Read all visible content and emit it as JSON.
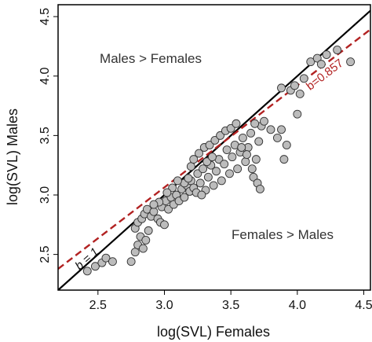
{
  "chart_data": {
    "type": "scatter",
    "xlabel": "log(SVL) Females",
    "ylabel": "log(SVL) Males",
    "xlim": [
      2.2,
      4.55
    ],
    "ylim": [
      2.2,
      4.6
    ],
    "x_ticks": [
      "2.5",
      "3.0",
      "3.5",
      "4.0",
      "4.5"
    ],
    "y_ticks": [
      "2.5",
      "3.0",
      "3.5",
      "4.0",
      "4.5"
    ],
    "annotations": {
      "upper_region": "Males > Females",
      "lower_region": "Females > Males",
      "reference_line": "b = 1",
      "fit_line": "b=0.857"
    },
    "reference_line": {
      "slope": 1.0,
      "intercept": 0.0,
      "style": "solid",
      "color": "#000000"
    },
    "fit_line": {
      "slope": 0.857,
      "intercept": 0.493,
      "style": "dashed",
      "color": "#b22222"
    },
    "point_color": "#bcbcbc",
    "points": [
      [
        2.42,
        2.36
      ],
      [
        2.48,
        2.4
      ],
      [
        2.53,
        2.43
      ],
      [
        2.56,
        2.47
      ],
      [
        2.61,
        2.44
      ],
      [
        2.75,
        2.44
      ],
      [
        2.78,
        2.52
      ],
      [
        2.8,
        2.58
      ],
      [
        2.82,
        2.65
      ],
      [
        2.84,
        2.55
      ],
      [
        2.86,
        2.62
      ],
      [
        2.88,
        2.7
      ],
      [
        2.78,
        2.72
      ],
      [
        2.8,
        2.77
      ],
      [
        2.83,
        2.8
      ],
      [
        2.85,
        2.84
      ],
      [
        2.87,
        2.88
      ],
      [
        2.9,
        2.82
      ],
      [
        2.92,
        2.86
      ],
      [
        2.95,
        2.8
      ],
      [
        2.97,
        2.77
      ],
      [
        3.0,
        2.75
      ],
      [
        2.98,
        2.9
      ],
      [
        3.01,
        2.95
      ],
      [
        3.03,
        2.88
      ],
      [
        3.05,
        2.98
      ],
      [
        3.07,
        2.92
      ],
      [
        3.09,
        3.0
      ],
      [
        3.11,
        2.95
      ],
      [
        3.13,
        3.05
      ],
      [
        3.15,
        2.98
      ],
      [
        3.17,
        3.08
      ],
      [
        3.19,
        3.03
      ],
      [
        3.2,
        3.12
      ],
      [
        3.22,
        3.06
      ],
      [
        3.25,
        3.18
      ],
      [
        3.27,
        3.1
      ],
      [
        3.29,
        3.22
      ],
      [
        3.31,
        3.04
      ],
      [
        3.33,
        3.15
      ],
      [
        3.35,
        3.25
      ],
      [
        3.37,
        3.08
      ],
      [
        3.39,
        3.2
      ],
      [
        3.41,
        3.3
      ],
      [
        3.43,
        3.12
      ],
      [
        3.45,
        3.26
      ],
      [
        3.47,
        3.38
      ],
      [
        3.49,
        3.18
      ],
      [
        3.51,
        3.32
      ],
      [
        3.53,
        3.42
      ],
      [
        3.55,
        3.22
      ],
      [
        3.57,
        3.36
      ],
      [
        3.59,
        3.48
      ],
      [
        3.61,
        3.28
      ],
      [
        3.63,
        3.4
      ],
      [
        3.65,
        3.52
      ],
      [
        3.67,
        3.15
      ],
      [
        3.69,
        3.3
      ],
      [
        3.71,
        3.45
      ],
      [
        3.73,
        3.58
      ],
      [
        3.2,
        3.24
      ],
      [
        3.22,
        3.3
      ],
      [
        3.26,
        3.35
      ],
      [
        3.3,
        3.4
      ],
      [
        3.34,
        3.42
      ],
      [
        3.38,
        3.46
      ],
      [
        3.42,
        3.5
      ],
      [
        3.46,
        3.54
      ],
      [
        3.5,
        3.56
      ],
      [
        3.54,
        3.6
      ],
      [
        3.58,
        3.4
      ],
      [
        3.62,
        3.34
      ],
      [
        3.66,
        3.22
      ],
      [
        3.7,
        3.1
      ],
      [
        3.72,
        3.05
      ],
      [
        3.68,
        3.6
      ],
      [
        3.75,
        3.62
      ],
      [
        3.8,
        3.55
      ],
      [
        3.85,
        3.48
      ],
      [
        3.88,
        3.55
      ],
      [
        3.9,
        3.3
      ],
      [
        3.92,
        3.42
      ],
      [
        3.95,
        3.88
      ],
      [
        3.98,
        3.92
      ],
      [
        4.02,
        3.85
      ],
      [
        4.05,
        3.98
      ],
      [
        4.0,
        3.68
      ],
      [
        3.88,
        3.9
      ],
      [
        4.1,
        4.12
      ],
      [
        4.15,
        4.15
      ],
      [
        4.18,
        4.1
      ],
      [
        4.22,
        4.18
      ],
      [
        4.3,
        4.22
      ],
      [
        4.4,
        4.12
      ],
      [
        3.15,
        3.1
      ],
      [
        3.18,
        3.14
      ],
      [
        3.24,
        3.02
      ],
      [
        3.28,
        3.0
      ],
      [
        3.32,
        3.28
      ],
      [
        3.36,
        3.32
      ],
      [
        3.1,
        3.12
      ],
      [
        3.06,
        3.06
      ],
      [
        3.02,
        3.02
      ],
      [
        2.96,
        2.94
      ],
      [
        2.92,
        2.92
      ]
    ]
  }
}
